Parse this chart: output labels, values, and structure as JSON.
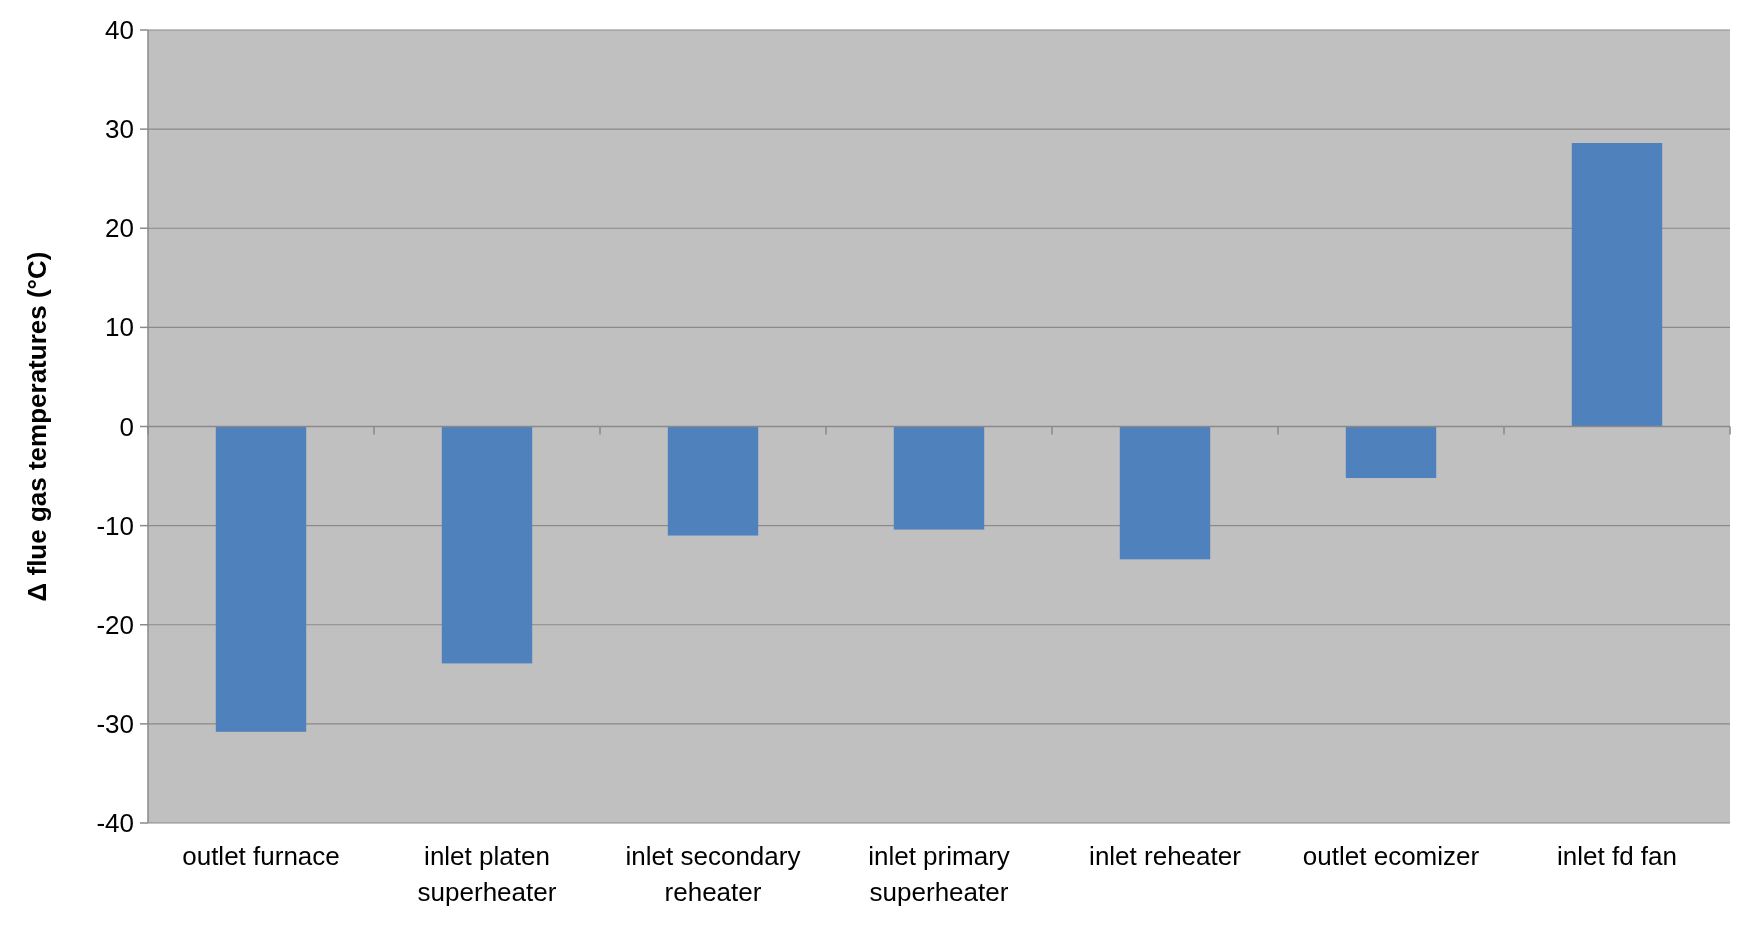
{
  "chart_data": {
    "type": "bar",
    "ylabel": "Δ flue gas temperatures (°C)",
    "categories": [
      "outlet furnace",
      "inlet platen superheater",
      "inlet secondary reheater",
      "inlet primary superheater",
      "inlet reheater",
      "outlet ecomizer",
      "inlet fd fan"
    ],
    "values": [
      -30.8,
      -23.9,
      -11.0,
      -10.4,
      -13.4,
      -5.2,
      28.6
    ],
    "color": "#4f81bd",
    "ylim": [
      -40,
      40
    ],
    "yticks": [
      -40,
      -30,
      -20,
      -10,
      0,
      10,
      20,
      30,
      40
    ],
    "grid": "y"
  }
}
